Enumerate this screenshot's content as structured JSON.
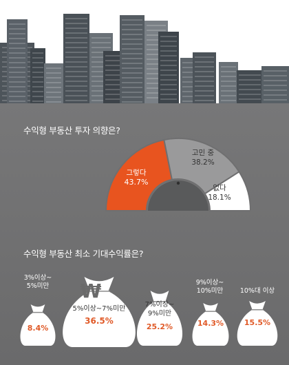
{
  "colors": {
    "accent": "#e8541f",
    "gray_segment": "#9a9a9b",
    "white_segment": "#ffffff",
    "background": "#707071"
  },
  "chart_data": [
    {
      "type": "pie",
      "title": "수익형 부동산 투자 의향은?",
      "slices": [
        {
          "label": "그렇다",
          "value": 43.7,
          "display": "43.7%",
          "color": "#e8541f"
        },
        {
          "label": "고민 중",
          "value": 38.2,
          "display": "38.2%",
          "color": "#9a9a9b"
        },
        {
          "label": "없다",
          "value": 18.1,
          "display": "18.1%",
          "color": "#ffffff"
        }
      ]
    },
    {
      "type": "bar",
      "title": "수익형 부동산 최소 기대수익률은?",
      "categories": [
        "3%이상~ 5%미만",
        "5%이상~7%미만",
        "7%이상~ 9%미만",
        "9%이상~ 10%미만",
        "10%대 이상"
      ],
      "values": [
        8.4,
        36.5,
        25.2,
        14.3,
        15.5
      ],
      "display": [
        "8.4%",
        "36.5%",
        "25.2%",
        "14.3%",
        "15.5%"
      ],
      "items": [
        {
          "line1": "3%이상~",
          "line2": "5%미만",
          "value_text": "8.4%"
        },
        {
          "line1": "5%이상~7%미만",
          "line2": "",
          "value_text": "36.5%"
        },
        {
          "line1": "7%이상~",
          "line2": "9%미만",
          "value_text": "25.2%"
        },
        {
          "line1": "9%이상~",
          "line2": "10%미만",
          "value_text": "14.3%"
        },
        {
          "line1": "10%대 이상",
          "line2": "",
          "value_text": "15.5%"
        }
      ],
      "icon": "won-sign-icon"
    }
  ]
}
